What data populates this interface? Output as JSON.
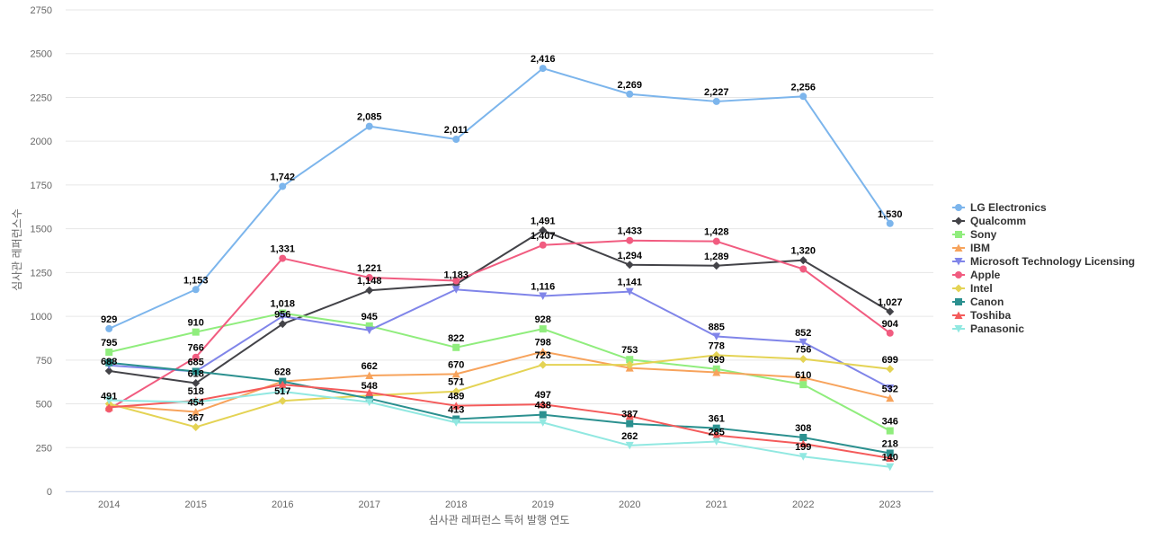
{
  "chart_data": {
    "type": "line",
    "title": "",
    "xlabel": "심사관 레퍼런스 특허 발행 연도",
    "ylabel": "심사관 레퍼런스수",
    "ylim": [
      0,
      2750
    ],
    "yticks": [
      0,
      250,
      500,
      750,
      1000,
      1250,
      1500,
      1750,
      2000,
      2250,
      2500,
      2750
    ],
    "grid": true,
    "legend_position": "right",
    "categories": [
      "2014",
      "2015",
      "2016",
      "2017",
      "2018",
      "2019",
      "2020",
      "2021",
      "2022",
      "2023"
    ],
    "series": [
      {
        "name": "LG Electronics",
        "color": "#7cb5ec",
        "marker": "circle",
        "values": [
          929,
          1153,
          1742,
          2085,
          2011,
          2416,
          2269,
          2227,
          2256,
          1530
        ],
        "labels": [
          "929",
          "1,153",
          "1,742",
          "2,085",
          "2,011",
          "2,416",
          "2,269",
          "2,227",
          "2,256",
          "1,530"
        ]
      },
      {
        "name": "Qualcomm",
        "color": "#434348",
        "marker": "diamond",
        "values": [
          688,
          618,
          956,
          1148,
          1183,
          1491,
          1294,
          1289,
          1320,
          1027
        ],
        "labels": [
          "688",
          "618",
          "956",
          "1,148",
          "1,183",
          "1,491",
          "1,294",
          "1,289",
          "1,320",
          "1,027"
        ]
      },
      {
        "name": "Sony",
        "color": "#90ed7d",
        "marker": "square",
        "values": [
          795,
          910,
          1018,
          945,
          822,
          928,
          753,
          699,
          610,
          346
        ],
        "labels": [
          "795",
          "910",
          "1,018",
          "945",
          "822",
          "928",
          "753",
          "699",
          "610",
          "346"
        ]
      },
      {
        "name": "IBM",
        "color": "#f7a35c",
        "marker": "triangle",
        "values": [
          491,
          454,
          628,
          662,
          670,
          798,
          705,
          680,
          650,
          532
        ],
        "labels": [
          "491",
          "454",
          "628",
          "662",
          "670",
          "798",
          "",
          "",
          "",
          "532"
        ]
      },
      {
        "name": "Microsoft Technology Licensing",
        "color": "#8085e9",
        "marker": "triangle-down",
        "values": [
          720,
          685,
          1000,
          920,
          1153,
          1116,
          1141,
          885,
          852,
          590
        ],
        "labels": [
          "",
          "685",
          "",
          "",
          "",
          "1,116",
          "1,141",
          "885",
          "852",
          ""
        ]
      },
      {
        "name": "Apple",
        "color": "#f15c80",
        "marker": "circle",
        "values": [
          470,
          766,
          1331,
          1221,
          1203,
          1407,
          1433,
          1428,
          1270,
          904
        ],
        "labels": [
          "",
          "766",
          "1,331",
          "1,221",
          "",
          "1,407",
          "1,433",
          "1,428",
          "",
          "904"
        ]
      },
      {
        "name": "Intel",
        "color": "#e4d354",
        "marker": "diamond",
        "values": [
          500,
          367,
          517,
          548,
          571,
          723,
          723,
          778,
          756,
          699
        ],
        "labels": [
          "",
          "367",
          "517",
          "548",
          "571",
          "723",
          "",
          "778",
          "756",
          "699"
        ]
      },
      {
        "name": "Canon",
        "color": "#2b908f",
        "marker": "square",
        "values": [
          735,
          685,
          628,
          530,
          413,
          438,
          387,
          361,
          308,
          218
        ],
        "labels": [
          "",
          "",
          "",
          "",
          "413",
          "438",
          "387",
          "361",
          "308",
          "218"
        ]
      },
      {
        "name": "Toshiba",
        "color": "#f45b5b",
        "marker": "triangle",
        "values": [
          480,
          518,
          610,
          565,
          489,
          497,
          430,
          320,
          272,
          190
        ],
        "labels": [
          "",
          "518",
          "",
          "",
          "489",
          "497",
          "",
          "",
          "",
          ""
        ]
      },
      {
        "name": "Panasonic",
        "color": "#91e8e1",
        "marker": "triangle-down",
        "values": [
          520,
          510,
          570,
          510,
          393,
          393,
          262,
          285,
          199,
          140
        ],
        "labels": [
          "",
          "",
          "",
          "",
          "",
          "",
          "262",
          "285",
          "199",
          "140"
        ]
      }
    ]
  }
}
